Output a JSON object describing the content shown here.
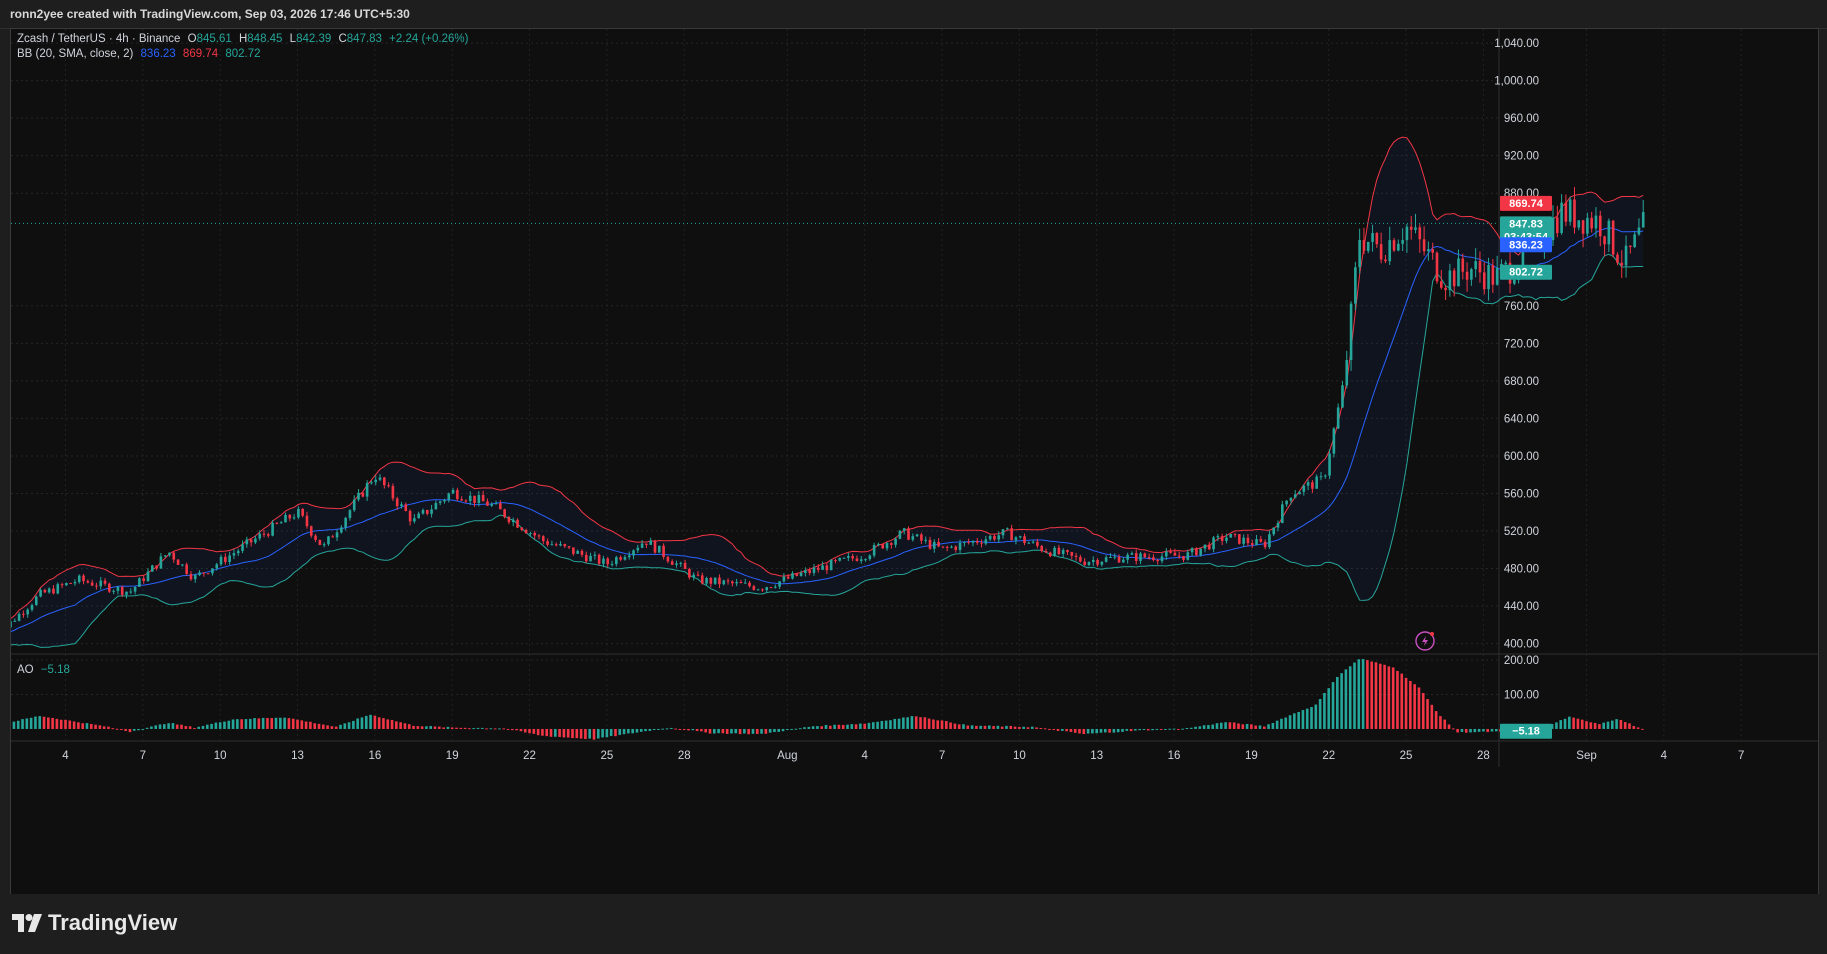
{
  "header": {
    "credit": "ronn2yee created with TradingView.com, Sep 03, 2026 17:46 UTC+5:30"
  },
  "legend": {
    "symbol": "Zcash / TetherUS · 4h · Binance",
    "o_label": "O",
    "o_value": "845.61",
    "h_label": "H",
    "h_value": "848.45",
    "l_label": "L",
    "l_value": "842.39",
    "c_label": "C",
    "c_value": "847.83",
    "change": "+2.24 (+0.26%)",
    "bb_label": "BB (20, SMA, close, 2)",
    "bb_basis": "836.23",
    "bb_upper": "869.74",
    "bb_lower": "802.72",
    "ao_label": "AO",
    "ao_value": "−5.18"
  },
  "price_tags": {
    "upper": "869.74",
    "last": "847.83",
    "countdown": "03:43:54",
    "basis": "836.23",
    "lower": "802.72",
    "ao": "−5.18"
  },
  "colors": {
    "up": "#26a69a",
    "down": "#f23645",
    "basis": "#2962ff",
    "upper_band": "#f23645",
    "lower_band": "#26a69a",
    "band_fill": "#2962ff"
  },
  "footer": {
    "brand": "TradingView"
  },
  "chart_data": [
    {
      "type": "candlestick",
      "title": "Zcash / TetherUS · 4h · Binance",
      "y_ticks": [
        "1,040.00",
        "1,000.00",
        "960.00",
        "920.00",
        "880.00",
        "760.00",
        "720.00",
        "680.00",
        "640.00",
        "600.00",
        "560.00",
        "520.00",
        "480.00",
        "440.00",
        "400.00"
      ],
      "y_tick_values": [
        1040,
        1000,
        960,
        920,
        880,
        760,
        720,
        680,
        640,
        600,
        560,
        520,
        480,
        440,
        400
      ],
      "x_ticks": [
        "4",
        "7",
        "10",
        "13",
        "16",
        "19",
        "22",
        "25",
        "28",
        "Aug",
        "4",
        "7",
        "10",
        "13",
        "16",
        "19",
        "22",
        "25",
        "28",
        "Sep",
        "4",
        "7"
      ],
      "x_tick_days": [
        4,
        7,
        10,
        13,
        16,
        19,
        22,
        25,
        28,
        32,
        35,
        38,
        41,
        44,
        47,
        50,
        53,
        56,
        59,
        63,
        66,
        69
      ],
      "ylim": [
        390,
        1055
      ],
      "grid": true,
      "bollinger": {
        "period": 20,
        "ma": "SMA",
        "source": "close",
        "stddev": 2
      },
      "last": {
        "open": 845.61,
        "high": 848.45,
        "low": 842.39,
        "close": 847.83
      },
      "anchor_closes": [
        {
          "day": 1.2,
          "close": 405
        },
        {
          "day": 3.0,
          "close": 452
        },
        {
          "day": 4.5,
          "close": 468
        },
        {
          "day": 6.5,
          "close": 455
        },
        {
          "day": 8.0,
          "close": 498
        },
        {
          "day": 9.0,
          "close": 470
        },
        {
          "day": 11.0,
          "close": 505
        },
        {
          "day": 13.0,
          "close": 540
        },
        {
          "day": 14.0,
          "close": 502
        },
        {
          "day": 16.0,
          "close": 580
        },
        {
          "day": 17.5,
          "close": 530
        },
        {
          "day": 19.0,
          "close": 562
        },
        {
          "day": 20.5,
          "close": 548
        },
        {
          "day": 22.5,
          "close": 510
        },
        {
          "day": 25.0,
          "close": 485
        },
        {
          "day": 26.5,
          "close": 510
        },
        {
          "day": 28.5,
          "close": 468
        },
        {
          "day": 31.0,
          "close": 460
        },
        {
          "day": 33.0,
          "close": 478
        },
        {
          "day": 35.0,
          "close": 495
        },
        {
          "day": 36.5,
          "close": 518
        },
        {
          "day": 38.0,
          "close": 500
        },
        {
          "day": 40.5,
          "close": 518
        },
        {
          "day": 42.0,
          "close": 500
        },
        {
          "day": 43.5,
          "close": 488
        },
        {
          "day": 45.0,
          "close": 492
        },
        {
          "day": 47.5,
          "close": 494
        },
        {
          "day": 49.0,
          "close": 514
        },
        {
          "day": 50.5,
          "close": 505
        },
        {
          "day": 51.5,
          "close": 560
        },
        {
          "day": 52.8,
          "close": 575
        },
        {
          "day": 53.6,
          "close": 680
        },
        {
          "day": 54.2,
          "close": 835
        },
        {
          "day": 55.0,
          "close": 820
        },
        {
          "day": 56.0,
          "close": 845
        },
        {
          "day": 57.5,
          "close": 790
        },
        {
          "day": 58.5,
          "close": 800
        },
        {
          "day": 59.5,
          "close": 790
        },
        {
          "day": 60.5,
          "close": 810
        },
        {
          "day": 62.0,
          "close": 860
        },
        {
          "day": 63.5,
          "close": 850
        },
        {
          "day": 64.5,
          "close": 805
        },
        {
          "day": 65.3,
          "close": 847.83
        }
      ]
    },
    {
      "type": "bar",
      "title": "AO",
      "y_ticks": [
        "200.00",
        "100.00"
      ],
      "y_tick_values": [
        200,
        100
      ],
      "ylim": [
        -35,
        215
      ],
      "last_value": -5.18,
      "anchor_values": [
        {
          "day": 0.0,
          "value": 4
        },
        {
          "day": 2.0,
          "value": 22
        },
        {
          "day": 3.0,
          "value": 38
        },
        {
          "day": 5.5,
          "value": 8
        },
        {
          "day": 6.5,
          "value": -8
        },
        {
          "day": 8.0,
          "value": 18
        },
        {
          "day": 9.0,
          "value": 4
        },
        {
          "day": 10.5,
          "value": 28
        },
        {
          "day": 12.5,
          "value": 34
        },
        {
          "day": 14.5,
          "value": 6
        },
        {
          "day": 15.8,
          "value": 42
        },
        {
          "day": 17.5,
          "value": 10
        },
        {
          "day": 19.0,
          "value": 4
        },
        {
          "day": 21.0,
          "value": 2
        },
        {
          "day": 22.5,
          "value": -20
        },
        {
          "day": 24.5,
          "value": -30
        },
        {
          "day": 26.0,
          "value": -12
        },
        {
          "day": 27.5,
          "value": 4
        },
        {
          "day": 29.0,
          "value": -12
        },
        {
          "day": 31.0,
          "value": -15
        },
        {
          "day": 33.0,
          "value": 8
        },
        {
          "day": 35.0,
          "value": 16
        },
        {
          "day": 37.0,
          "value": 38
        },
        {
          "day": 39.0,
          "value": 10
        },
        {
          "day": 41.5,
          "value": 6
        },
        {
          "day": 43.5,
          "value": -15
        },
        {
          "day": 45.5,
          "value": -5
        },
        {
          "day": 47.5,
          "value": 2
        },
        {
          "day": 49.0,
          "value": 20
        },
        {
          "day": 50.5,
          "value": 8
        },
        {
          "day": 51.5,
          "value": 40
        },
        {
          "day": 52.5,
          "value": 70
        },
        {
          "day": 53.3,
          "value": 150
        },
        {
          "day": 54.2,
          "value": 205
        },
        {
          "day": 55.5,
          "value": 180
        },
        {
          "day": 56.5,
          "value": 120
        },
        {
          "day": 57.3,
          "value": 40
        },
        {
          "day": 58.0,
          "value": -10
        },
        {
          "day": 59.5,
          "value": -8
        },
        {
          "day": 60.5,
          "value": -15
        },
        {
          "day": 61.5,
          "value": 8
        },
        {
          "day": 62.3,
          "value": 35
        },
        {
          "day": 63.5,
          "value": 15
        },
        {
          "day": 64.2,
          "value": 30
        },
        {
          "day": 65.3,
          "value": -5.18
        }
      ]
    }
  ]
}
